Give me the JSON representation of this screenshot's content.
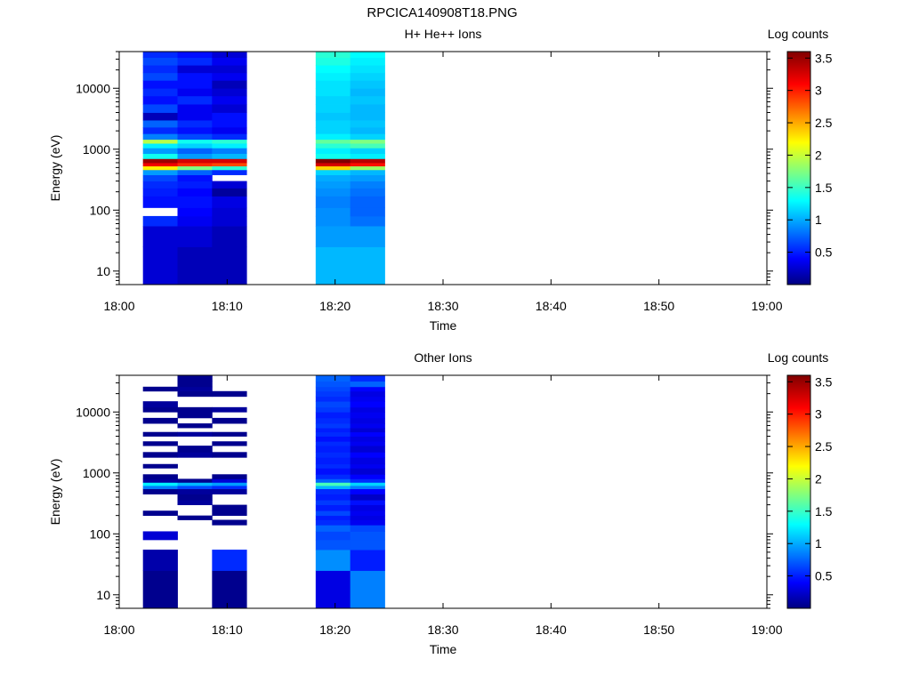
{
  "figure_title": "RPCICA140908T18.PNG",
  "chart_data": [
    {
      "type": "heatmap",
      "title": "H+ He++ Ions",
      "xlabel": "Time",
      "ylabel": "Energy (eV)",
      "colorbar_label": "Log counts",
      "x_ticks": [
        "18:00",
        "18:10",
        "18:20",
        "18:30",
        "18:40",
        "18:50",
        "19:00"
      ],
      "y_ticks": [
        "10",
        "100",
        "1000",
        "10000"
      ],
      "y_scale": "log",
      "ylim": [
        6,
        40000
      ],
      "xlim": [
        "18:00",
        "19:00"
      ],
      "colorbar_ticks": [
        "0.5",
        "1",
        "1.5",
        "2",
        "2.5",
        "3",
        "3.5"
      ],
      "colorbar_range": [
        0,
        3.6
      ],
      "columns": [
        {
          "start": "18:02.2",
          "end": "18:05.4"
        },
        {
          "start": "18:05.4",
          "end": "18:08.6"
        },
        {
          "start": "18:08.6",
          "end": "18:11.8"
        },
        {
          "start": "18:18.2",
          "end": "18:21.4"
        },
        {
          "start": "18:21.4",
          "end": "18:24.6"
        }
      ],
      "energy_bins": [
        {
          "lo": 6,
          "hi": 25,
          "values": [
            0.3,
            0.2,
            0.2,
            1.1,
            1.1
          ]
        },
        {
          "lo": 25,
          "hi": 55,
          "values": [
            0.3,
            0.3,
            0.2,
            1.0,
            1.0
          ]
        },
        {
          "lo": 55,
          "hi": 80,
          "values": [
            0.6,
            0.4,
            0.3,
            0.95,
            0.85
          ]
        },
        {
          "lo": 80,
          "hi": 110,
          "values": [
            null,
            0.45,
            0.3,
            0.95,
            0.8
          ]
        },
        {
          "lo": 110,
          "hi": 170,
          "values": [
            0.5,
            0.5,
            0.35,
            0.9,
            0.8
          ]
        },
        {
          "lo": 170,
          "hi": 230,
          "values": [
            0.55,
            0.45,
            0.1,
            0.95,
            0.85
          ]
        },
        {
          "lo": 230,
          "hi": 300,
          "values": [
            0.6,
            0.55,
            0.3,
            1.0,
            0.9
          ]
        },
        {
          "lo": 300,
          "hi": 380,
          "values": [
            0.7,
            0.5,
            null,
            1.05,
            1.0
          ]
        },
        {
          "lo": 380,
          "hi": 460,
          "values": [
            1.0,
            0.8,
            0.6,
            1.2,
            1.1
          ]
        },
        {
          "lo": 460,
          "hi": 530,
          "values": [
            2.3,
            1.8,
            1.5,
            2.4,
            1.9
          ]
        },
        {
          "lo": 530,
          "hi": 600,
          "values": [
            3.2,
            3.0,
            2.9,
            3.3,
            3.1
          ]
        },
        {
          "lo": 600,
          "hi": 700,
          "values": [
            3.5,
            3.3,
            3.3,
            3.6,
            3.4
          ]
        },
        {
          "lo": 700,
          "hi": 850,
          "values": [
            1.4,
            1.0,
            1.1,
            1.4,
            1.3
          ]
        },
        {
          "lo": 850,
          "hi": 1050,
          "values": [
            1.0,
            0.8,
            0.9,
            1.3,
            1.2
          ]
        },
        {
          "lo": 1050,
          "hi": 1250,
          "values": [
            1.3,
            1.2,
            1.3,
            1.5,
            1.6
          ]
        },
        {
          "lo": 1250,
          "hi": 1450,
          "values": [
            2.0,
            1.4,
            1.5,
            1.7,
            1.8
          ]
        },
        {
          "lo": 1450,
          "hi": 1800,
          "values": [
            0.9,
            0.7,
            0.6,
            1.3,
            1.2
          ]
        },
        {
          "lo": 1800,
          "hi": 2300,
          "values": [
            0.6,
            0.5,
            0.4,
            1.2,
            1.1
          ]
        },
        {
          "lo": 2300,
          "hi": 3000,
          "values": [
            0.8,
            0.6,
            0.5,
            1.2,
            1.15
          ]
        },
        {
          "lo": 3000,
          "hi": 4000,
          "values": [
            0.2,
            0.4,
            0.5,
            1.15,
            1.1
          ]
        },
        {
          "lo": 4000,
          "hi": 5500,
          "values": [
            0.7,
            0.4,
            0.3,
            1.2,
            1.1
          ]
        },
        {
          "lo": 5500,
          "hi": 7500,
          "values": [
            0.5,
            0.6,
            0.4,
            1.2,
            1.15
          ]
        },
        {
          "lo": 7500,
          "hi": 10000,
          "values": [
            0.6,
            0.4,
            0.3,
            1.25,
            1.1
          ]
        },
        {
          "lo": 10000,
          "hi": 13500,
          "values": [
            0.5,
            0.5,
            0.2,
            1.25,
            1.15
          ]
        },
        {
          "lo": 13500,
          "hi": 18000,
          "values": [
            0.7,
            0.5,
            0.4,
            1.3,
            1.2
          ]
        },
        {
          "lo": 18000,
          "hi": 24000,
          "values": [
            0.6,
            0.3,
            0.3,
            1.35,
            1.25
          ]
        },
        {
          "lo": 24000,
          "hi": 32000,
          "values": [
            0.7,
            0.6,
            0.4,
            1.45,
            1.3
          ]
        },
        {
          "lo": 32000,
          "hi": 40000,
          "values": [
            0.6,
            0.5,
            0.3,
            1.5,
            1.35
          ]
        }
      ]
    },
    {
      "type": "heatmap",
      "title": "Other Ions",
      "xlabel": "Time",
      "ylabel": "Energy (eV)",
      "colorbar_label": "Log counts",
      "x_ticks": [
        "18:00",
        "18:10",
        "18:20",
        "18:30",
        "18:40",
        "18:50",
        "19:00"
      ],
      "y_ticks": [
        "10",
        "100",
        "1000",
        "10000"
      ],
      "y_scale": "log",
      "ylim": [
        6,
        40000
      ],
      "xlim": [
        "18:00",
        "19:00"
      ],
      "colorbar_ticks": [
        "0.5",
        "1",
        "1.5",
        "2",
        "2.5",
        "3",
        "3.5"
      ],
      "colorbar_range": [
        0,
        3.6
      ],
      "columns": [
        {
          "start": "18:02.2",
          "end": "18:05.4"
        },
        {
          "start": "18:05.4",
          "end": "18:08.6"
        },
        {
          "start": "18:08.6",
          "end": "18:11.8"
        },
        {
          "start": "18:18.2",
          "end": "18:21.4"
        },
        {
          "start": "18:21.4",
          "end": "18:24.6"
        }
      ],
      "energy_bins": [
        {
          "lo": 6,
          "hi": 25,
          "values": [
            0.05,
            null,
            0.05,
            0.35,
            0.9
          ]
        },
        {
          "lo": 25,
          "hi": 55,
          "values": [
            0.15,
            null,
            0.6,
            0.95,
            0.55
          ]
        },
        {
          "lo": 55,
          "hi": 80,
          "values": [
            null,
            null,
            null,
            0.75,
            0.75
          ]
        },
        {
          "lo": 80,
          "hi": 110,
          "values": [
            0.3,
            null,
            null,
            0.7,
            0.75
          ]
        },
        {
          "lo": 110,
          "hi": 140,
          "values": [
            null,
            null,
            null,
            0.8,
            0.7
          ]
        },
        {
          "lo": 140,
          "hi": 170,
          "values": [
            null,
            null,
            0.05,
            0.6,
            0.4
          ]
        },
        {
          "lo": 170,
          "hi": 200,
          "values": [
            null,
            0.05,
            null,
            0.55,
            0.35
          ]
        },
        {
          "lo": 200,
          "hi": 240,
          "values": [
            0.05,
            null,
            0.05,
            0.7,
            0.4
          ]
        },
        {
          "lo": 240,
          "hi": 300,
          "values": [
            null,
            null,
            0.05,
            0.55,
            0.35
          ]
        },
        {
          "lo": 300,
          "hi": 360,
          "values": [
            null,
            0.1,
            null,
            0.65,
            0.5
          ]
        },
        {
          "lo": 360,
          "hi": 450,
          "values": [
            null,
            0.05,
            null,
            0.55,
            0.25
          ]
        },
        {
          "lo": 450,
          "hi": 550,
          "values": [
            0.05,
            0.1,
            0.1,
            0.6,
            0.45
          ]
        },
        {
          "lo": 550,
          "hi": 620,
          "values": [
            0.9,
            0.7,
            0.6,
            1.1,
            0.9
          ]
        },
        {
          "lo": 620,
          "hi": 700,
          "values": [
            1.3,
            1.1,
            1.0,
            1.6,
            1.2
          ]
        },
        {
          "lo": 700,
          "hi": 800,
          "values": [
            0.1,
            0.05,
            0.3,
            0.8,
            0.6
          ]
        },
        {
          "lo": 800,
          "hi": 950,
          "values": [
            0.05,
            null,
            0.05,
            0.6,
            0.45
          ]
        },
        {
          "lo": 950,
          "hi": 1200,
          "values": [
            null,
            null,
            null,
            0.5,
            0.3
          ]
        },
        {
          "lo": 1200,
          "hi": 1400,
          "values": [
            0.05,
            null,
            null,
            0.6,
            0.4
          ]
        },
        {
          "lo": 1400,
          "hi": 1800,
          "values": [
            null,
            null,
            null,
            0.55,
            0.35
          ]
        },
        {
          "lo": 1800,
          "hi": 2200,
          "values": [
            0.05,
            0.1,
            0.05,
            0.6,
            0.45
          ]
        },
        {
          "lo": 2200,
          "hi": 2800,
          "values": [
            null,
            0.05,
            null,
            0.55,
            0.3
          ]
        },
        {
          "lo": 2800,
          "hi": 3300,
          "values": [
            0.05,
            null,
            0.05,
            0.6,
            0.4
          ]
        },
        {
          "lo": 3300,
          "hi": 4000,
          "values": [
            null,
            null,
            null,
            0.5,
            0.35
          ]
        },
        {
          "lo": 4000,
          "hi": 4700,
          "values": [
            0.05,
            0.1,
            0.05,
            0.6,
            0.45
          ]
        },
        {
          "lo": 4700,
          "hi": 5500,
          "values": [
            null,
            null,
            null,
            0.55,
            0.3
          ]
        },
        {
          "lo": 5500,
          "hi": 6500,
          "values": [
            null,
            0.05,
            null,
            0.65,
            0.4
          ]
        },
        {
          "lo": 6500,
          "hi": 8000,
          "values": [
            0.05,
            null,
            0.05,
            0.6,
            0.35
          ]
        },
        {
          "lo": 8000,
          "hi": 10000,
          "values": [
            null,
            0.05,
            null,
            0.55,
            0.4
          ]
        },
        {
          "lo": 10000,
          "hi": 12000,
          "values": [
            0.05,
            0.05,
            0.1,
            0.65,
            0.35
          ]
        },
        {
          "lo": 12000,
          "hi": 15000,
          "values": [
            0.1,
            null,
            null,
            0.7,
            0.45
          ]
        },
        {
          "lo": 15000,
          "hi": 18000,
          "values": [
            null,
            null,
            null,
            0.6,
            0.4
          ]
        },
        {
          "lo": 18000,
          "hi": 22000,
          "values": [
            null,
            0.05,
            0.05,
            0.65,
            0.35
          ]
        },
        {
          "lo": 22000,
          "hi": 26000,
          "values": [
            0.05,
            0.1,
            null,
            0.7,
            0.45
          ]
        },
        {
          "lo": 26000,
          "hi": 32000,
          "values": [
            null,
            0.05,
            null,
            0.75,
            0.8
          ]
        },
        {
          "lo": 32000,
          "hi": 40000,
          "values": [
            null,
            0.05,
            null,
            0.8,
            0.6
          ]
        }
      ]
    }
  ]
}
